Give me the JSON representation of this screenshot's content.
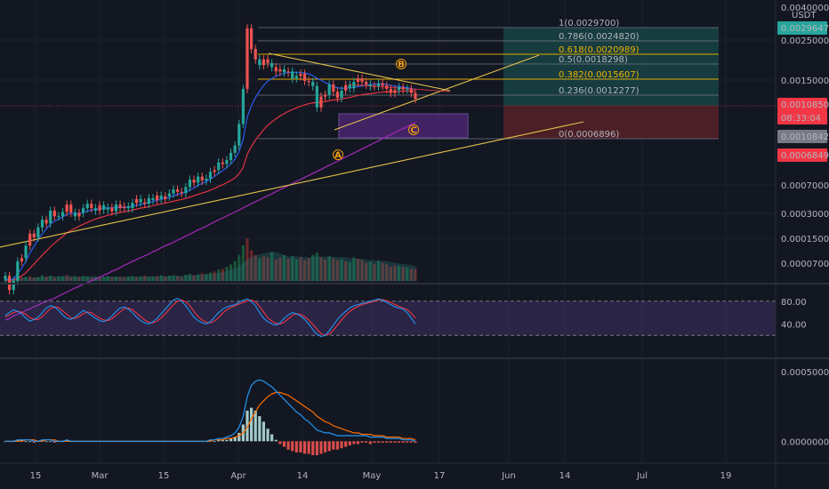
{
  "colors": {
    "background": "#131722",
    "grid": "#1e222d",
    "candle_up": "#26a69a",
    "candle_down": "#ef5350",
    "ma_fast": "#2962ff",
    "ma_mid": "#f23645",
    "ma_slow": "#9c27b0",
    "trendline": "#e6c34a",
    "fib_line": "#787b86",
    "fib_gold": "#f0b400",
    "wave_label": "#f59e0b",
    "stoch_k": "#2196f3",
    "stoch_d": "#f23645",
    "stoch_band": "#7e57c2",
    "macd_line": "#2196f3",
    "signal_line": "#ff6d00",
    "hist_up": "#b2dfdb",
    "hist_down": "#ef5350"
  },
  "price_axis": {
    "currency": "USDT",
    "ticks": [
      "0.0040000",
      "0.0025000",
      "0.0015000",
      "0.0007000",
      "0.0003000",
      "0.0001500",
      "0.0000700"
    ],
    "markers": [
      {
        "label": "0.0029647",
        "color": "#26a69a"
      },
      {
        "label": "0.0010850",
        "color": "#f23645"
      },
      {
        "label": "08:33:04",
        "color": "#f23645"
      },
      {
        "label": "0.0010842",
        "color": "#787b86"
      },
      {
        "label": "0.0006849",
        "color": "#f23645"
      }
    ]
  },
  "stoch_axis": {
    "ticks": [
      "80.00",
      "40.00"
    ]
  },
  "macd_axis": {
    "ticks": [
      "0.0005000",
      "0.0000000"
    ]
  },
  "time_axis": {
    "ticks": [
      "15",
      "Mar",
      "15",
      "Apr",
      "14",
      "May",
      "17",
      "Jun",
      "14",
      "Jul",
      "19"
    ]
  },
  "fib_levels": [
    {
      "label": "1(0.0029700)",
      "gold": false
    },
    {
      "label": "0.786(0.0024820)",
      "gold": false
    },
    {
      "label": "0.618(0.0020989)",
      "gold": true
    },
    {
      "label": "0.5(0.0018298)",
      "gold": false
    },
    {
      "label": "0.382(0.0015607)",
      "gold": true
    },
    {
      "label": "0.236(0.0012277)",
      "gold": false
    },
    {
      "label": "0(0.0006896)",
      "gold": false
    }
  ],
  "wave_labels": [
    "A",
    "B",
    "C"
  ],
  "chart_data": {
    "type": "candlestick",
    "title": "",
    "y_scale": "log",
    "x_range": [
      "Feb 1",
      "Jul 31"
    ],
    "price_range": [
      4e-05,
      0.0042
    ],
    "candle_color_pattern": [
      1,
      0,
      1,
      1,
      0,
      1,
      0,
      0,
      1,
      1,
      0,
      1,
      0,
      1,
      1,
      0,
      0,
      1,
      0,
      1,
      1,
      0,
      1,
      0,
      1,
      1,
      0,
      1,
      0,
      0,
      1,
      1,
      0,
      1,
      0,
      1,
      1,
      0,
      1,
      0,
      1,
      1,
      0,
      0,
      1,
      1,
      0,
      1,
      0,
      1,
      1,
      0,
      1,
      0,
      1,
      1,
      1,
      1,
      1,
      0,
      0,
      0,
      1,
      0,
      0,
      1,
      0,
      0,
      1,
      0,
      1,
      1,
      0,
      0,
      0,
      1,
      1,
      0,
      0,
      1,
      0,
      0,
      1,
      0,
      1,
      1,
      0,
      0,
      0,
      1,
      0,
      1,
      0,
      0,
      0,
      0,
      1,
      0,
      1,
      0,
      0
    ],
    "close": [
      8.8e-05,
      7.2e-05,
      8.2e-05,
      0.000108,
      0.000113,
      0.000135,
      0.00016,
      0.000152,
      0.000175,
      0.000195,
      0.000185,
      0.000222,
      0.000205,
      0.000205,
      0.000218,
      0.000242,
      0.000216,
      0.000205,
      0.000215,
      0.00023,
      0.000245,
      0.00023,
      0.000222,
      0.00024,
      0.000225,
      0.000232,
      0.00022,
      0.000242,
      0.000231,
      0.000236,
      0.00023,
      0.000248,
      0.000262,
      0.00025,
      0.000245,
      0.000265,
      0.000258,
      0.000275,
      0.000262,
      0.000272,
      0.000283,
      0.0003,
      0.00029,
      0.000285,
      0.00031,
      0.000345,
      0.00033,
      0.00036,
      0.00034,
      0.00035,
      0.000385,
      0.000395,
      0.00044,
      0.00043,
      0.000455,
      0.000505,
      0.00056,
      0.00076,
      0.00125,
      0.00295,
      0.0022,
      0.0019,
      0.00175,
      0.0019,
      0.0018,
      0.0017,
      0.0016,
      0.00165,
      0.00158,
      0.0016,
      0.00145,
      0.0015,
      0.00155,
      0.0014,
      0.00138,
      0.0013,
      0.00096,
      0.00112,
      0.00115,
      0.00133,
      0.0012,
      0.0011,
      0.00122,
      0.00132,
      0.00126,
      0.00138,
      0.00145,
      0.00138,
      0.00133,
      0.0013,
      0.0013,
      0.00135,
      0.00131,
      0.00125,
      0.00118,
      0.00123,
      0.00128,
      0.00124,
      0.00125,
      0.00118,
      0.001085
    ],
    "ma_fast": [
      8.4e-05,
      8.3e-05,
      8.4e-05,
      9.1e-05,
      9.8e-05,
      0.000108,
      0.000122,
      0.000134,
      0.000147,
      0.00016,
      0.000171,
      0.000184,
      0.000191,
      0.000197,
      0.000203,
      0.000211,
      0.000214,
      0.000213,
      0.000213,
      0.000216,
      0.00022,
      0.000224,
      0.000226,
      0.000229,
      0.00023,
      0.000231,
      0.000231,
      0.000232,
      0.000232,
      0.000233,
      0.000233,
      0.000236,
      0.00024,
      0.000243,
      0.000245,
      0.000249,
      0.000253,
      0.000257,
      0.000261,
      0.000264,
      0.000268,
      0.000274,
      0.000279,
      0.000283,
      0.000289,
      0.000298,
      0.000306,
      0.000318,
      0.000327,
      0.000335,
      0.000347,
      0.00036,
      0.000377,
      0.000392,
      0.000409,
      0.000431,
      0.000461,
      0.000514,
      0.00061,
      0.000841,
      0.000981,
      0.001105,
      0.001212,
      0.001312,
      0.001394,
      0.00145,
      0.001496,
      0.00153,
      0.001556,
      0.001579,
      0.00158,
      0.001583,
      0.001577,
      0.001564,
      0.001543,
      0.001505,
      0.001453,
      0.001411,
      0.001364,
      0.001332,
      0.001296,
      0.001268,
      0.001261,
      0.001262,
      0.001268,
      0.001274,
      0.001291,
      0.001302,
      0.001313,
      0.001325,
      0.001335,
      0.001341,
      0.001341,
      0.001331,
      0.001314,
      0.001302,
      0.001291,
      0.001281,
      0.001271,
      0.001256,
      0.001235
    ],
    "ma_mid": [
      8.3e-05,
      8.3e-05,
      8.3e-05,
      8.5e-05,
      8.8e-05,
      9.2e-05,
      9.8e-05,
      0.000104,
      0.000111,
      0.000118,
      0.000125,
      0.000133,
      0.00014,
      0.000147,
      0.000154,
      0.000162,
      0.000168,
      0.000173,
      0.000178,
      0.000183,
      0.000188,
      0.000193,
      0.000197,
      0.000201,
      0.000204,
      0.000208,
      0.000211,
      0.000214,
      0.000216,
      0.000219,
      0.000221,
      0.000224,
      0.000227,
      0.00023,
      0.000232,
      0.000235,
      0.000238,
      0.000241,
      0.000244,
      0.000247,
      0.00025,
      0.000254,
      0.000257,
      0.00026,
      0.000264,
      0.000269,
      0.000274,
      0.00028,
      0.000285,
      0.00029,
      0.000297,
      0.000304,
      0.000313,
      0.000321,
      0.00033,
      0.000341,
      0.000354,
      0.000375,
      0.00041,
      0.000494,
      0.000551,
      0.000605,
      0.000651,
      0.000701,
      0.000745,
      0.000784,
      0.000818,
      0.000851,
      0.00088,
      0.000909,
      0.000931,
      0.000954,
      0.000977,
      0.000996,
      0.001013,
      0.001026,
      0.001025,
      0.001034,
      0.001044,
      0.001058,
      0.001068,
      0.001072,
      0.001083,
      0.001097,
      0.001107,
      0.001122,
      0.001139,
      0.001151,
      0.001161,
      0.001169,
      0.001177,
      0.001187,
      0.001194,
      0.001198,
      0.001197,
      0.0012,
      0.001206,
      0.001209,
      0.001213,
      0.001211,
      0.001203
    ],
    "ma_slow": [
      4.7e-05,
      4.8e-05,
      5e-05,
      5.1e-05,
      5.2e-05,
      5.4e-05,
      5.5e-05,
      5.7e-05,
      5.8e-05,
      6e-05,
      6.1e-05,
      6.3e-05,
      6.4e-05,
      6.6e-05,
      6.8e-05,
      7e-05,
      7.2e-05,
      7.4e-05,
      7.6e-05,
      7.8e-05,
      8e-05,
      8.2e-05,
      8.4e-05,
      8.6e-05,
      8.9e-05,
      9.1e-05,
      9.4e-05,
      9.6e-05,
      9.9e-05,
      0.000102,
      0.000105,
      0.000108,
      0.000111,
      0.000114,
      0.000117,
      0.00012,
      0.000124,
      0.000127,
      0.000131,
      0.000135,
      0.000138,
      0.000142,
      0.000146,
      0.00015,
      0.000155,
      0.000159,
      0.000164,
      0.000169,
      0.000173,
      0.000178,
      0.000184,
      0.000189,
      0.000195,
      0.0002,
      0.000206,
      0.000212,
      0.000218,
      0.000224,
      0.000231,
      0.000238,
      0.000245,
      0.000252,
      0.000259,
      0.000267,
      0.000274,
      0.000282,
      0.000291,
      0.000299,
      0.000308,
      0.000317,
      0.000326,
      0.000336,
      0.000346,
      0.000356,
      0.000366,
      0.000377,
      0.000388,
      0.000399,
      0.000411,
      0.000423,
      0.000435,
      0.000448,
      0.000461,
      0.000475,
      0.000489,
      0.000503,
      0.000518,
      0.000533,
      0.000548,
      0.000565,
      0.000581,
      0.000598,
      0.000616,
      0.000634,
      0.000652,
      0.000671,
      0.000691,
      0.000711,
      0.000732,
      0.000753,
      0.000775
    ],
    "volume": [
      3,
      5,
      4,
      6,
      8,
      9,
      10,
      7,
      8,
      12,
      9,
      11,
      7,
      9,
      10,
      12,
      8,
      9,
      8,
      10,
      9,
      7,
      8,
      9,
      8,
      10,
      8,
      9,
      8,
      7,
      9,
      10,
      8,
      9,
      11,
      8,
      9,
      10,
      12,
      9,
      11,
      12,
      10,
      8,
      13,
      15,
      12,
      14,
      16,
      15,
      18,
      20,
      24,
      25,
      30,
      35,
      42,
      55,
      75,
      90,
      65,
      55,
      48,
      52,
      50,
      60,
      45,
      50,
      55,
      47,
      52,
      46,
      50,
      44,
      48,
      55,
      60,
      50,
      45,
      52,
      48,
      44,
      46,
      42,
      40,
      50,
      47,
      44,
      38,
      40,
      36,
      42,
      38,
      35,
      30,
      33,
      32,
      30,
      28,
      26,
      25
    ],
    "stoch_k": [
      55,
      60,
      65,
      62,
      58,
      50,
      45,
      48,
      52,
      60,
      68,
      72,
      70,
      64,
      56,
      50,
      48,
      52,
      58,
      64,
      60,
      55,
      50,
      46,
      44,
      48,
      54,
      62,
      68,
      70,
      66,
      60,
      52,
      46,
      42,
      40,
      44,
      50,
      58,
      66,
      74,
      82,
      85,
      80,
      72,
      62,
      52,
      46,
      42,
      40,
      44,
      52,
      60,
      66,
      70,
      72,
      74,
      78,
      82,
      84,
      80,
      72,
      60,
      50,
      44,
      40,
      38,
      42,
      50,
      56,
      60,
      58,
      54,
      48,
      40,
      30,
      22,
      18,
      20,
      28,
      38,
      48,
      56,
      62,
      68,
      72,
      74,
      76,
      78,
      80,
      82,
      84,
      82,
      78,
      74,
      70,
      68,
      66,
      60,
      50,
      40
    ],
    "stoch_d": [
      52,
      56,
      60,
      62,
      61,
      57,
      51,
      48,
      48,
      53,
      60,
      67,
      70,
      69,
      63,
      57,
      51,
      50,
      53,
      58,
      61,
      60,
      55,
      50,
      47,
      46,
      49,
      55,
      61,
      67,
      68,
      65,
      59,
      53,
      47,
      43,
      42,
      45,
      51,
      58,
      66,
      74,
      80,
      82,
      79,
      72,
      62,
      53,
      47,
      43,
      42,
      45,
      51,
      59,
      65,
      69,
      72,
      75,
      78,
      81,
      82,
      79,
      71,
      61,
      51,
      45,
      41,
      40,
      43,
      49,
      55,
      58,
      57,
      53,
      47,
      39,
      31,
      23,
      20,
      22,
      29,
      38,
      47,
      55,
      62,
      67,
      71,
      74,
      76,
      78,
      80,
      82,
      83,
      81,
      78,
      74,
      71,
      68,
      65,
      59,
      50
    ],
    "macd": [
      0,
      0,
      0,
      1e-05,
      1e-05,
      1e-05,
      1e-05,
      0,
      0,
      1e-05,
      1e-05,
      1e-05,
      0,
      0,
      0,
      1e-05,
      0,
      0,
      0,
      0,
      0,
      0,
      0,
      0,
      0,
      0,
      0,
      0,
      0,
      0,
      0,
      0,
      0,
      0,
      0,
      0,
      0,
      0,
      0,
      0,
      0,
      0,
      0,
      0,
      0,
      0,
      0,
      0,
      0,
      0,
      1e-05,
      1e-05,
      2e-05,
      2e-05,
      3e-05,
      4e-05,
      6e-05,
      0.0001,
      0.00018,
      0.00032,
      0.0004,
      0.00043,
      0.00044,
      0.00043,
      0.00041,
      0.00039,
      0.00036,
      0.00033,
      0.0003,
      0.00027,
      0.00024,
      0.00021,
      0.00019,
      0.00016,
      0.00014,
      0.00011,
      8e-05,
      7e-05,
      6e-05,
      6e-05,
      5e-05,
      4e-05,
      4e-05,
      4e-05,
      4e-05,
      4e-05,
      4e-05,
      4e-05,
      4e-05,
      3e-05,
      3e-05,
      3e-05,
      3e-05,
      2e-05,
      2e-05,
      2e-05,
      2e-05,
      1e-05,
      1e-05,
      1e-05,
      0
    ],
    "signal": [
      0,
      0,
      0,
      0,
      0,
      1e-05,
      1e-05,
      1e-05,
      0,
      0,
      1e-05,
      1e-05,
      1e-05,
      0,
      0,
      0,
      0,
      0,
      0,
      0,
      0,
      0,
      0,
      0,
      0,
      0,
      0,
      0,
      0,
      0,
      0,
      0,
      0,
      0,
      0,
      0,
      0,
      0,
      0,
      0,
      0,
      0,
      0,
      0,
      0,
      0,
      0,
      0,
      0,
      0,
      0,
      1e-05,
      1e-05,
      1e-05,
      2e-05,
      2e-05,
      3e-05,
      4e-05,
      6e-05,
      0.0001,
      0.00016,
      0.00021,
      0.00026,
      0.00029,
      0.00032,
      0.00034,
      0.00035,
      0.00035,
      0.00034,
      0.00033,
      0.00031,
      0.00029,
      0.00027,
      0.00025,
      0.00023,
      0.00021,
      0.00018,
      0.00016,
      0.00014,
      0.00013,
      0.00011,
      0.0001,
      9e-05,
      8e-05,
      7e-05,
      6e-05,
      6e-05,
      5e-05,
      5e-05,
      5e-05,
      4e-05,
      4e-05,
      4e-05,
      3e-05,
      3e-05,
      3e-05,
      3e-05,
      2e-05,
      2e-05,
      2e-05,
      1e-05
    ],
    "stoch_range": [
      0,
      100
    ],
    "stoch_band": [
      20,
      80
    ],
    "macd_range": [
      -0.0001,
      0.00055
    ]
  }
}
